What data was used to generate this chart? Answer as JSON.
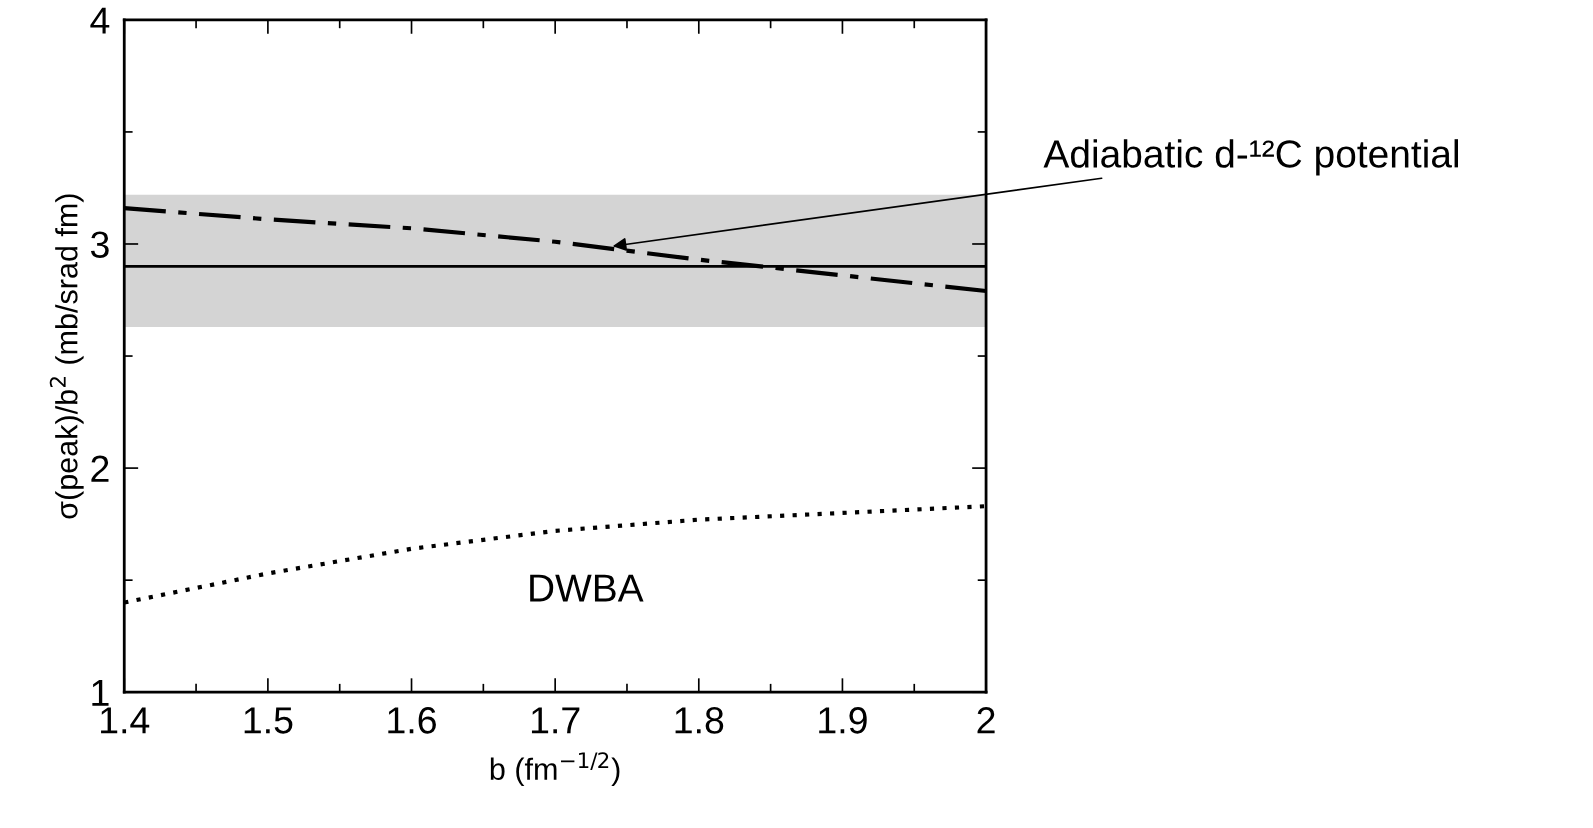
{
  "chart_data": {
    "type": "line",
    "xlabel": "b (fm$^{−1/2}$)",
    "ylabel": "σ(peak)/b$^{2}$ (mb/srad fm)",
    "xlim": [
      1.4,
      2
    ],
    "ylim": [
      1,
      4
    ],
    "xticks": [
      1.4,
      1.5,
      1.6,
      1.7,
      1.8,
      1.9,
      2
    ],
    "yticks": [
      1,
      2,
      3,
      4
    ],
    "grid": false,
    "legend": false,
    "marker": "none",
    "series": [
      {
        "color": "#000000",
        "line_style": "dashdot",
        "x": [
          1.4,
          1.5,
          1.6,
          1.7,
          1.8,
          1.9,
          2.0
        ],
        "values": [
          3.16,
          3.11,
          3.07,
          3.01,
          2.93,
          2.86,
          2.79
        ]
      },
      {
        "color": "#000000",
        "line_style": "dotted",
        "x": [
          1.4,
          1.5,
          1.6,
          1.7,
          1.8,
          1.9,
          2.0
        ],
        "values": [
          1.4,
          1.53,
          1.64,
          1.72,
          1.77,
          1.8,
          1.83
        ]
      }
    ],
    "ref_lines": [
      {
        "axis": "y",
        "value": 2.9,
        "color": "#000000",
        "line_style": "solid"
      }
    ],
    "bands": [
      {
        "axis": "y",
        "from": 2.63,
        "to": 3.22,
        "color": "#d4d4d4"
      }
    ],
    "annotations": [
      {
        "text": "Adiabatic d-¹²C potential",
        "x": 1.74,
        "y": 2.99
      },
      "DWBA"
    ]
  }
}
